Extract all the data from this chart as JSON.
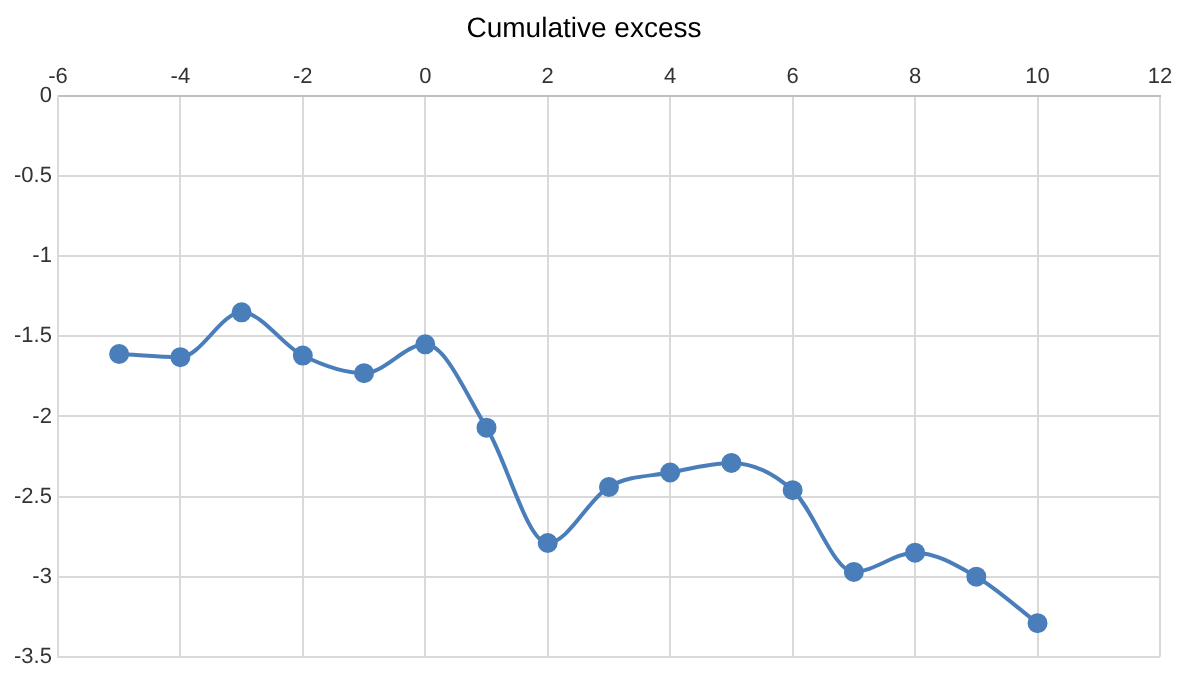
{
  "chart_data": {
    "type": "line",
    "title": "Cumulative excess",
    "x": [
      -5,
      -4,
      -3,
      -2,
      -1,
      0,
      1,
      2,
      3,
      4,
      5,
      6,
      7,
      8,
      9,
      10
    ],
    "series": [
      {
        "color": "#4a7ebb",
        "values": [
          -1.61,
          -1.63,
          -1.35,
          -1.62,
          -1.73,
          -1.55,
          -2.07,
          -2.79,
          -2.44,
          -2.35,
          -2.29,
          -2.46,
          -2.97,
          -2.85,
          -3.0,
          -3.29
        ]
      }
    ],
    "xlim": [
      -6,
      12
    ],
    "xticks": [
      -6,
      -4,
      -2,
      0,
      2,
      4,
      6,
      8,
      10,
      12
    ],
    "ylim": [
      -3.5,
      0
    ],
    "yticks": [
      0,
      -0.5,
      -1,
      -1.5,
      -2,
      -2.5,
      -3,
      -3.5
    ],
    "grid": true,
    "legend": false,
    "marker": "circle",
    "line_style": "solid"
  }
}
